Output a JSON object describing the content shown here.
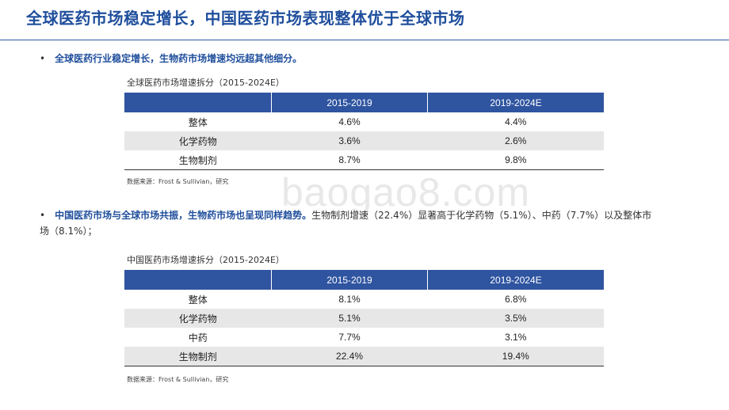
{
  "title": "全球医药市场稳定增长，中国医药市场表现整体优于全球市场",
  "bullet1": {
    "lead": "全球医药行业稳定增长，生物药市场增速均远超其他细分。",
    "body": ""
  },
  "table1": {
    "caption": "全球医药市场增速拆分（2015-2024E）",
    "headers": [
      "",
      "2015-2019",
      "2019-2024E"
    ],
    "rows": [
      {
        "label": "整体",
        "v1": "4.6%",
        "v2": "4.4%"
      },
      {
        "label": "化学药物",
        "v1": "3.6%",
        "v2": "2.6%"
      },
      {
        "label": "生物制剂",
        "v1": "8.7%",
        "v2": "9.8%"
      }
    ],
    "source": "数据来源：Frost & Sullivian，研究"
  },
  "bullet2": {
    "lead": "中国医药市场与全球市场共振，生物药市场也呈现同样趋势。",
    "body": "生物制剂增速（22.4%）显著高于化学药物（5.1%）、中药（7.7%）以及整体市场（8.1%）；"
  },
  "table2": {
    "caption": "中国医药市场增速拆分（2015-2024E）",
    "headers": [
      "",
      "2015-2019",
      "2019-2024E"
    ],
    "rows": [
      {
        "label": "整体",
        "v1": "8.1%",
        "v2": "6.8%"
      },
      {
        "label": "化学药物",
        "v1": "5.1%",
        "v2": "3.5%"
      },
      {
        "label": "中药",
        "v1": "7.7%",
        "v2": "3.1%"
      },
      {
        "label": "生物制剂",
        "v1": "22.4%",
        "v2": "19.4%"
      }
    ],
    "source": "数据来源：Frost & Sullivian，研究"
  },
  "watermark": "baogao8.com",
  "colors": {
    "accent": "#1f4e9c",
    "header_bg": "#2f54a0",
    "alt_row": "#e7e7e7"
  }
}
